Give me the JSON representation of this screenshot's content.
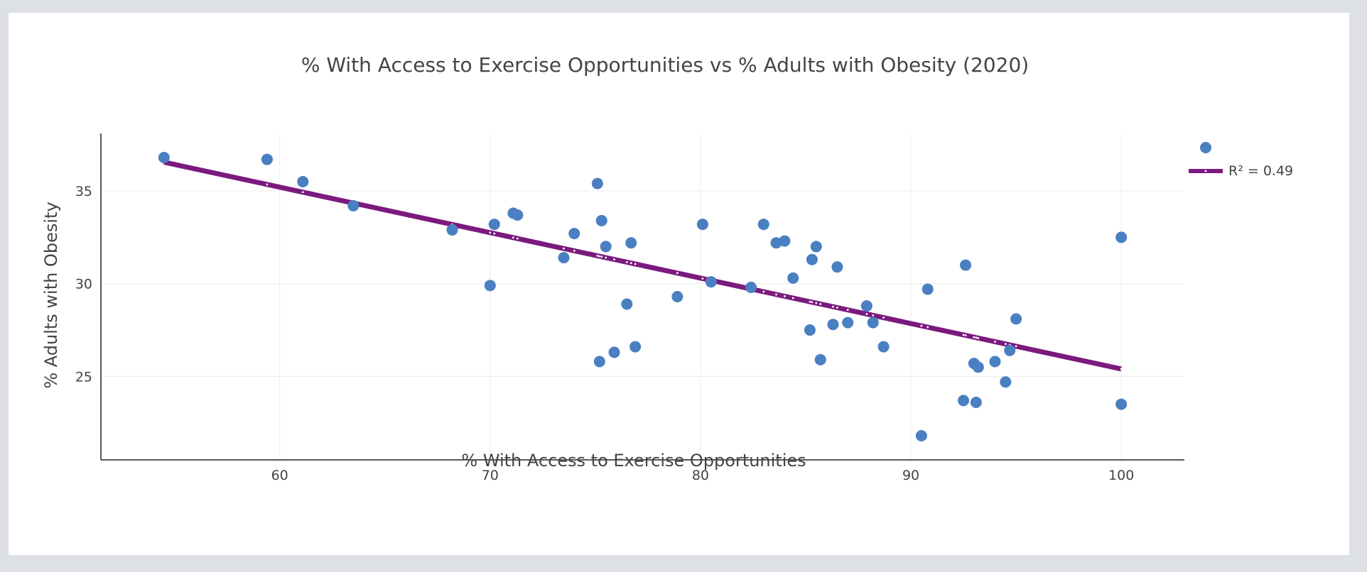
{
  "chart_data": {
    "type": "scatter",
    "title": "% With Access to Exercise Opportunities vs % Adults with Obesity (2020)",
    "xlabel": "% With Access to Exercise Opportunities",
    "ylabel": "% Adults with Obesity",
    "xlim": [
      51.5,
      103
    ],
    "ylim": [
      20.5,
      38.1
    ],
    "xticks": [
      60,
      70,
      80,
      90,
      100
    ],
    "yticks": [
      25,
      30,
      35
    ],
    "grid": true,
    "legend_position": "top-right",
    "colors": {
      "points": "#4a7fc1",
      "trendline": "#7b1a7e",
      "grid": "#ececec",
      "axis": "#222222"
    },
    "series": [
      {
        "name": "",
        "mode": "markers",
        "points": [
          [
            54.5,
            36.8
          ],
          [
            59.4,
            36.7
          ],
          [
            61.1,
            35.5
          ],
          [
            63.5,
            34.2
          ],
          [
            68.2,
            32.9
          ],
          [
            70.0,
            29.9
          ],
          [
            70.2,
            33.2
          ],
          [
            71.1,
            33.8
          ],
          [
            71.3,
            33.7
          ],
          [
            73.5,
            31.4
          ],
          [
            74.0,
            32.7
          ],
          [
            75.1,
            35.4
          ],
          [
            75.2,
            25.8
          ],
          [
            75.3,
            33.4
          ],
          [
            75.5,
            32.0
          ],
          [
            75.9,
            26.3
          ],
          [
            76.5,
            28.9
          ],
          [
            76.7,
            32.2
          ],
          [
            76.9,
            26.6
          ],
          [
            78.9,
            29.3
          ],
          [
            80.1,
            33.2
          ],
          [
            80.5,
            30.1
          ],
          [
            82.4,
            29.8
          ],
          [
            83.0,
            33.2
          ],
          [
            83.6,
            32.2
          ],
          [
            84.0,
            32.3
          ],
          [
            84.4,
            30.3
          ],
          [
            85.2,
            27.5
          ],
          [
            85.3,
            31.3
          ],
          [
            85.5,
            32.0
          ],
          [
            85.7,
            25.9
          ],
          [
            86.3,
            27.8
          ],
          [
            86.5,
            30.9
          ],
          [
            87.0,
            27.9
          ],
          [
            87.9,
            28.8
          ],
          [
            88.2,
            27.9
          ],
          [
            88.7,
            26.6
          ],
          [
            90.5,
            21.8
          ],
          [
            90.8,
            29.7
          ],
          [
            92.5,
            23.7
          ],
          [
            92.6,
            31.0
          ],
          [
            93.0,
            25.7
          ],
          [
            93.1,
            23.6
          ],
          [
            93.2,
            25.5
          ],
          [
            94.0,
            25.8
          ],
          [
            94.5,
            24.7
          ],
          [
            94.7,
            26.4
          ],
          [
            95.0,
            28.1
          ],
          [
            100.0,
            32.5
          ],
          [
            100.0,
            23.5
          ]
        ]
      },
      {
        "name": "R² = 0.49",
        "mode": "line",
        "points": [
          [
            54.5,
            36.55
          ],
          [
            100.0,
            25.4
          ]
        ]
      }
    ]
  }
}
